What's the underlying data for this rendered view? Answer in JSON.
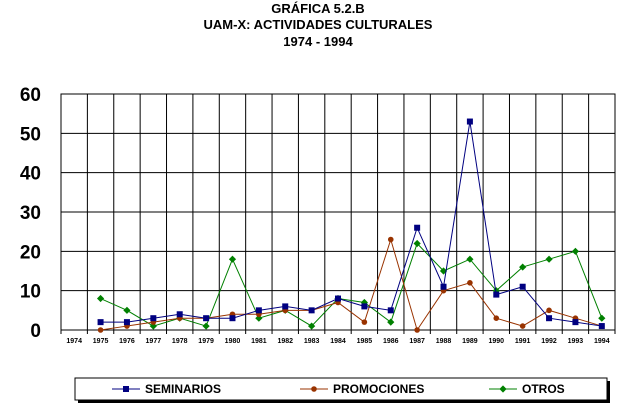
{
  "chart_data": {
    "type": "line",
    "title": "GRÁFICA 5.2.B",
    "subtitle": "UAM-X: ACTIVIDADES CULTURALES",
    "period": "1974 - 1994",
    "xlabel": "",
    "ylabel": "",
    "ylim": [
      0,
      60
    ],
    "yticks": [
      "0",
      "10",
      "20",
      "30",
      "40",
      "50",
      "60"
    ],
    "grid": true,
    "legend_position": "bottom",
    "categories": [
      "1974",
      "1975",
      "1976",
      "1977",
      "1978",
      "1979",
      "1980",
      "1981",
      "1982",
      "1983",
      "1984",
      "1985",
      "1986",
      "1987",
      "1988",
      "1989",
      "1990",
      "1991",
      "1992",
      "1993",
      "1994"
    ],
    "series": [
      {
        "name": "SEMINARIOS",
        "color": "#000080",
        "marker": "square",
        "values": [
          null,
          2,
          2,
          3,
          4,
          3,
          3,
          5,
          6,
          5,
          8,
          6,
          5,
          26,
          11,
          53,
          9,
          11,
          3,
          2,
          1
        ]
      },
      {
        "name": "PROMOCIONES",
        "color": "#993300",
        "marker": "circle",
        "values": [
          null,
          0,
          1,
          2,
          3,
          3,
          4,
          4,
          5,
          5,
          7,
          2,
          23,
          0,
          10,
          12,
          3,
          1,
          5,
          3,
          1
        ]
      },
      {
        "name": "OTROS",
        "color": "#008000",
        "marker": "diamond",
        "values": [
          null,
          8,
          5,
          1,
          3,
          1,
          18,
          3,
          5,
          1,
          8,
          7,
          2,
          22,
          15,
          18,
          10,
          16,
          18,
          20,
          3
        ]
      }
    ]
  }
}
